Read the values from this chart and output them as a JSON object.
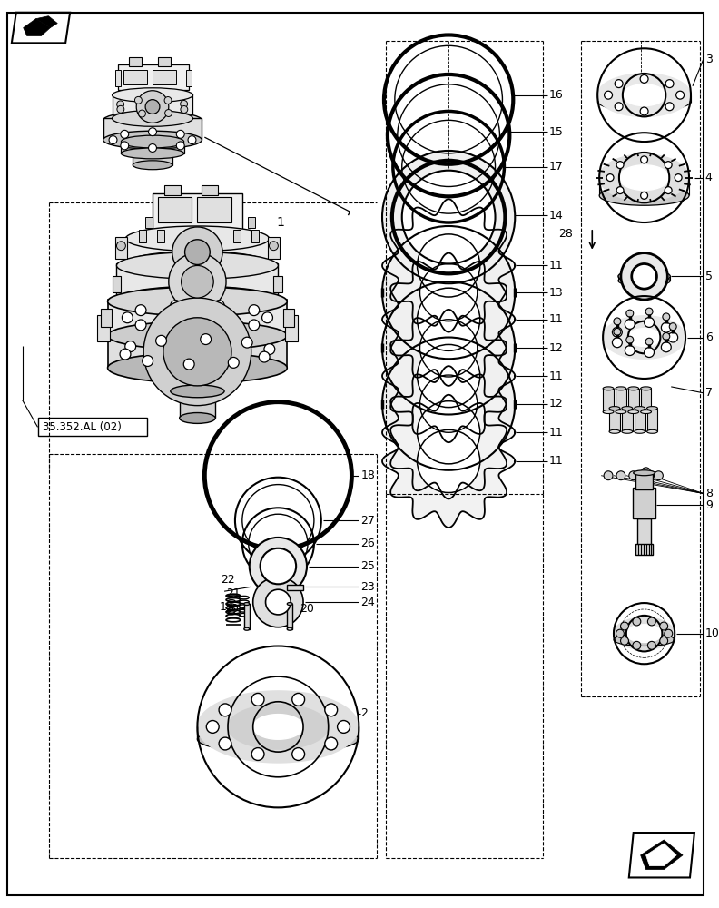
{
  "background_color": "#ffffff",
  "figsize": [
    7.92,
    10.0
  ],
  "dpi": 100,
  "ref_label": "35.352.AL (02)",
  "line_color": "#000000",
  "gray_light": "#e8e8e8",
  "gray_medium": "#cccccc",
  "gray_dark": "#999999"
}
